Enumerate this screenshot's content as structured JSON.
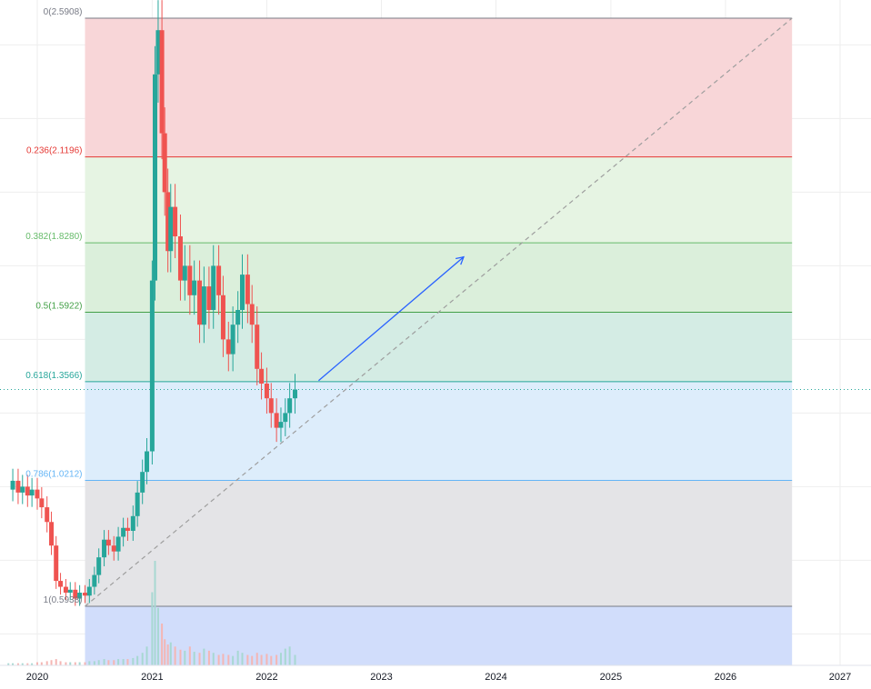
{
  "chart_data": {
    "type": "candlestick",
    "title": "",
    "xlabel": "",
    "ylabel": "",
    "x_axis": {
      "range": [
        "2019-10-01",
        "2027-03-01"
      ],
      "tick_labels": [
        "2020",
        "2021",
        "2022",
        "2023",
        "2024",
        "2025",
        "2026",
        "2027"
      ],
      "tick_dates": [
        "2020-01-01",
        "2021-01-01",
        "2022-01-01",
        "2023-01-01",
        "2024-01-01",
        "2025-01-01",
        "2026-01-01",
        "2027-01-01"
      ]
    },
    "y_axis": {
      "range": [
        0.4,
        2.62
      ],
      "scale": "linear"
    },
    "grid": true,
    "colors": {
      "up": "#26a69a",
      "down": "#ef5350",
      "volume_up": "#a7d8d2",
      "volume_down": "#f4b6b4",
      "trend_arrow": "#2962ff",
      "diagonal": "#9e9e9e",
      "price_line": "#26a69a",
      "grid": "#eeeeee"
    },
    "fib_retracement": {
      "start_date": "2020-06-01",
      "end_date": "2026-08-01",
      "levels": [
        {
          "ratio": 0,
          "price": 2.5908,
          "label": "0(2.5908)",
          "line": "#787b86",
          "zone": "#f8d4d6"
        },
        {
          "ratio": 0.236,
          "price": 2.1196,
          "label": "0.236(2.1196)",
          "line": "#e53935",
          "zone": "#e5f3e2"
        },
        {
          "ratio": 0.382,
          "price": 1.828,
          "label": "0.382(1.8280)",
          "line": "#66bb6a",
          "zone": "#d9eed9"
        },
        {
          "ratio": 0.5,
          "price": 1.5922,
          "label": "0.5(1.5922)",
          "line": "#43a047",
          "zone": "#d2ebe3"
        },
        {
          "ratio": 0.618,
          "price": 1.3566,
          "label": "0.618(1.3566)",
          "line": "#26a69a",
          "zone": "#dbecfb"
        },
        {
          "ratio": 0.786,
          "price": 1.0212,
          "label": "0.786(1.0212)",
          "line": "#64b5f6",
          "zone": "#e3e3e6"
        },
        {
          "ratio": 1,
          "price": 0.5938,
          "label": "1(0.5938)",
          "line": "#787b86",
          "zone": "#cfdbfb"
        }
      ]
    },
    "trend_line": {
      "from": {
        "date": "2020-06-01",
        "price": 0.5938
      },
      "to": {
        "date": "2026-08-01",
        "price": 2.5908
      }
    },
    "arrow": {
      "from": {
        "date": "2022-06-15",
        "price": 1.36
      },
      "to": {
        "date": "2023-09-20",
        "price": 1.78
      }
    },
    "last_price": 1.33,
    "price_series": {
      "dates": [
        "2019-10-01",
        "2019-10-15",
        "2019-11-01",
        "2019-11-15",
        "2019-12-01",
        "2019-12-15",
        "2020-01-01",
        "2020-01-15",
        "2020-02-01",
        "2020-02-15",
        "2020-03-01",
        "2020-03-15",
        "2020-04-01",
        "2020-04-15",
        "2020-05-01",
        "2020-05-15",
        "2020-06-01",
        "2020-06-15",
        "2020-07-01",
        "2020-07-15",
        "2020-08-01",
        "2020-08-15",
        "2020-09-01",
        "2020-09-15",
        "2020-10-01",
        "2020-10-15",
        "2020-11-01",
        "2020-11-15",
        "2020-12-01",
        "2020-12-15",
        "2021-01-01",
        "2021-01-10",
        "2021-01-20",
        "2021-02-01",
        "2021-02-10",
        "2021-02-20",
        "2021-03-01",
        "2021-03-15",
        "2021-04-01",
        "2021-04-15",
        "2021-05-01",
        "2021-05-15",
        "2021-06-01",
        "2021-06-15",
        "2021-07-01",
        "2021-07-15",
        "2021-08-01",
        "2021-08-15",
        "2021-09-01",
        "2021-09-15",
        "2021-10-01",
        "2021-10-15",
        "2021-11-01",
        "2021-11-15",
        "2021-12-01",
        "2021-12-15",
        "2022-01-01",
        "2022-01-15",
        "2022-02-01",
        "2022-02-15",
        "2022-03-01",
        "2022-03-15",
        "2022-04-01"
      ],
      "close": [
        0.99,
        1.02,
        0.98,
        1.0,
        0.97,
        0.99,
        0.96,
        0.93,
        0.88,
        0.8,
        0.68,
        0.66,
        0.64,
        0.65,
        0.62,
        0.64,
        0.63,
        0.66,
        0.7,
        0.76,
        0.82,
        0.8,
        0.78,
        0.83,
        0.86,
        0.85,
        0.9,
        0.98,
        1.05,
        1.12,
        1.7,
        2.4,
        2.55,
        2.2,
        2.0,
        1.8,
        1.95,
        1.85,
        1.7,
        1.75,
        1.65,
        1.7,
        1.55,
        1.68,
        1.6,
        1.75,
        1.65,
        1.5,
        1.45,
        1.55,
        1.6,
        1.72,
        1.62,
        1.55,
        1.4,
        1.35,
        1.3,
        1.25,
        1.2,
        1.22,
        1.25,
        1.3,
        1.33
      ]
    },
    "volume": {
      "scale_note": "relative",
      "values": [
        2,
        2,
        2,
        2,
        2,
        2,
        3,
        3,
        4,
        5,
        6,
        4,
        3,
        3,
        3,
        3,
        3,
        4,
        4,
        5,
        6,
        5,
        5,
        6,
        6,
        6,
        7,
        9,
        12,
        18,
        70,
        100,
        55,
        40,
        25,
        20,
        22,
        18,
        15,
        14,
        18,
        13,
        12,
        16,
        14,
        12,
        10,
        11,
        10,
        9,
        14,
        12,
        10,
        9,
        12,
        10,
        11,
        9,
        10,
        12,
        16,
        18,
        10
      ]
    }
  }
}
